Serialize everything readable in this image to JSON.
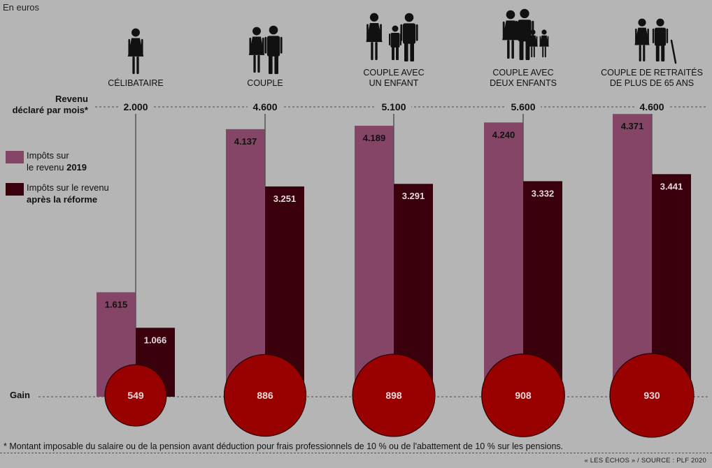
{
  "header": {
    "unit_label": "En euros"
  },
  "rows": {
    "revenue_line1": "Revenu",
    "revenue_line2": "déclaré par mois*",
    "gain_label": "Gain"
  },
  "legend": {
    "items": [
      {
        "pre": "Impôts sur",
        "line2": "le revenu ",
        "bold": "2019",
        "color": "#844566"
      },
      {
        "pre": "Impôts sur le revenu",
        "line2": "",
        "bold": "après la réforme",
        "color": "#3a000c"
      }
    ]
  },
  "icons": [
    "single-person-icon",
    "couple-icon",
    "family-one-child-icon",
    "family-two-children-icon",
    "retired-couple-icon"
  ],
  "colors": {
    "background": "#b5b5b5",
    "bar_2019": "#844566",
    "bar_reform": "#3a000c",
    "gain_circle": "#990000",
    "gain_circle_stroke": "#2a0000",
    "label_dark": "#111111",
    "label_light": "#e4d6dd"
  },
  "chart_data": {
    "type": "bar",
    "categories": [
      [
        "CÉLIBATAIRE"
      ],
      [
        "COUPLE"
      ],
      [
        "COUPLE AVEC",
        "UN ENFANT"
      ],
      [
        "COUPLE AVEC",
        "DEUX ENFANTS"
      ],
      [
        "COUPLE DE RETRAITÉS",
        "DE PLUS DE 65 ANS"
      ]
    ],
    "declared_income": [
      "2.000",
      "4.600",
      "5.100",
      "5.600",
      "4.600"
    ],
    "series": [
      {
        "name": "Impôts sur le revenu 2019",
        "values": [
          1615,
          4137,
          4189,
          4240,
          4371
        ],
        "labels": [
          "1.615",
          "4.137",
          "4.189",
          "4.240",
          "4.371"
        ]
      },
      {
        "name": "Impôts sur le revenu après la réforme",
        "values": [
          1066,
          3251,
          3291,
          3332,
          3441
        ],
        "labels": [
          "1.066",
          "3.251",
          "3.291",
          "3.332",
          "3.441"
        ]
      }
    ],
    "gain": {
      "values": [
        549,
        886,
        898,
        908,
        930
      ],
      "labels": [
        "549",
        "886",
        "898",
        "908",
        "930"
      ]
    },
    "ylim": [
      0,
      4600
    ]
  },
  "footer": {
    "footnote": "* Montant imposable du salaire ou de la pension avant déduction pour frais professionnels de 10 % ou de l'abattement de 10 % sur les pensions.",
    "source": "« LES ÉCHOS » / SOURCE : PLF 2020"
  }
}
